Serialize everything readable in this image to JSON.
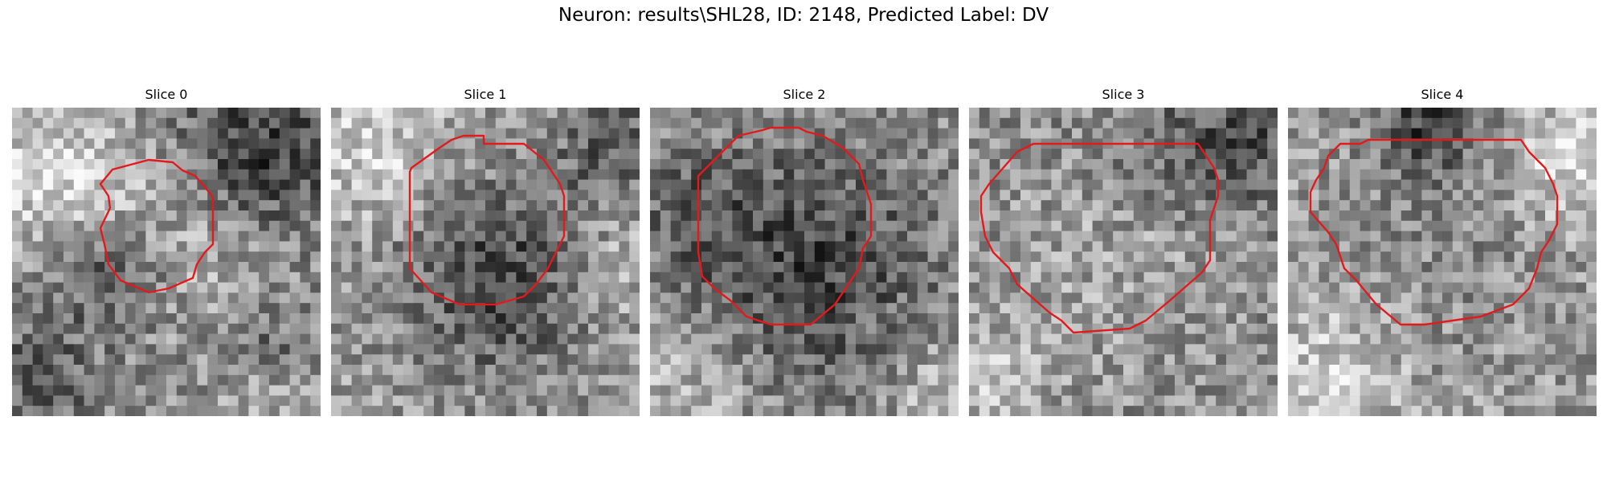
{
  "figure": {
    "title": "Neuron: results\\SHL28, ID: 2148, Predicted Label: DV"
  },
  "panels": [
    {
      "title": "Slice 0"
    },
    {
      "title": "Slice 1"
    },
    {
      "title": "Slice 2"
    },
    {
      "title": "Slice 3"
    },
    {
      "title": "Slice 4"
    }
  ],
  "style": {
    "contour_color": "#e31a1c",
    "colormap": "gray"
  }
}
